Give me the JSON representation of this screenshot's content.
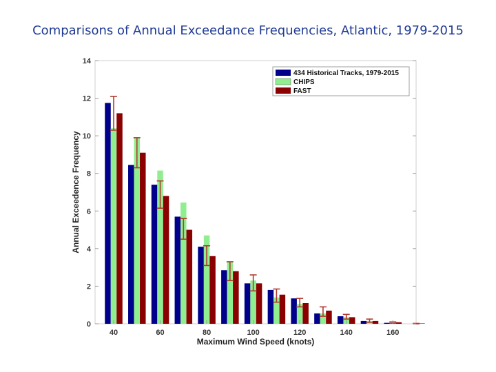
{
  "slide": {
    "title": "Comparisons of Annual Exceedance Frequencies, Atlantic, 1979-2015"
  },
  "chart_data": {
    "type": "bar",
    "xlabel": "Maximum Wind Speed (knots)",
    "ylabel": "Annual Exceedence Frequency",
    "xlim": [
      32,
      170
    ],
    "ylim": [
      0,
      14
    ],
    "x_ticks": [
      40,
      60,
      80,
      100,
      120,
      140,
      160
    ],
    "y_ticks": [
      0,
      2,
      4,
      6,
      8,
      10,
      12,
      14
    ],
    "categories": [
      40,
      50,
      60,
      70,
      80,
      90,
      100,
      110,
      120,
      130,
      140,
      150,
      160,
      170
    ],
    "grid": false,
    "legend_position": "top-right",
    "series": [
      {
        "name": "434 Historical Tracks, 1979-2015",
        "color": "#00008b",
        "values": [
          11.75,
          8.45,
          7.4,
          5.7,
          4.1,
          2.85,
          2.15,
          1.8,
          1.35,
          0.55,
          0.4,
          0.15,
          0.05,
          0.0
        ]
      },
      {
        "name": "CHIPS",
        "color": "#90ee90",
        "values": [
          10.4,
          9.9,
          8.15,
          6.45,
          4.7,
          3.3,
          2.3,
          1.4,
          1.05,
          0.55,
          0.35,
          0.15,
          0.05,
          0.0
        ]
      },
      {
        "name": "FAST",
        "color": "#8b0000",
        "values": [
          11.2,
          9.1,
          6.8,
          5.0,
          3.6,
          2.8,
          2.15,
          1.55,
          1.1,
          0.7,
          0.35,
          0.15,
          0.08,
          0.02
        ]
      }
    ],
    "error_bars": {
      "series": "CHIPS",
      "color": "#b03a2e",
      "lower": [
        10.3,
        8.3,
        6.15,
        4.5,
        3.1,
        2.3,
        1.75,
        1.15,
        0.9,
        0.4,
        0.25,
        0.08,
        0.03,
        0.0
      ],
      "upper": [
        12.1,
        9.9,
        7.6,
        5.6,
        4.15,
        3.3,
        2.6,
        1.85,
        1.35,
        0.9,
        0.5,
        0.25,
        0.1,
        0.02
      ]
    }
  }
}
